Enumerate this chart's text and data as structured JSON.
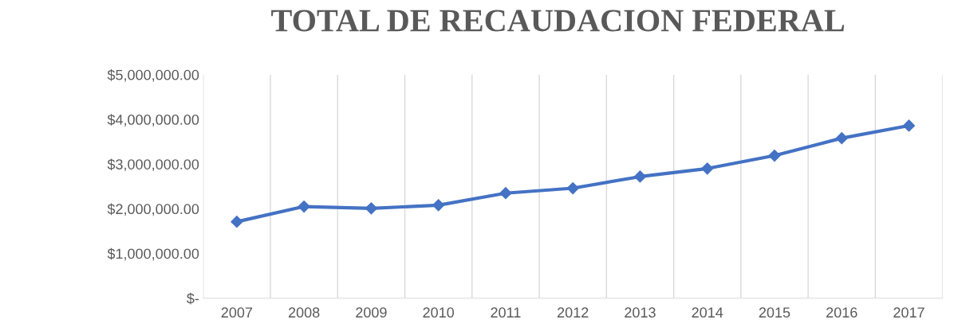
{
  "chart_data": {
    "type": "line",
    "title": "TOTAL DE RECAUDACION FEDERAL",
    "categories": [
      "2007",
      "2008",
      "2009",
      "2010",
      "2011",
      "2012",
      "2013",
      "2014",
      "2015",
      "2016",
      "2017"
    ],
    "series": [
      {
        "color": "#4472c4",
        "values": [
          1710000,
          2050000,
          2010000,
          2080000,
          2350000,
          2460000,
          2720000,
          2900000,
          3190000,
          3580000,
          3860000
        ]
      }
    ],
    "ylim": [
      0,
      5000000
    ],
    "yticks": [
      {
        "value": 0,
        "label": "$-"
      },
      {
        "value": 1000000,
        "label": "$1,000,000.00"
      },
      {
        "value": 2000000,
        "label": "$2,000,000.00"
      },
      {
        "value": 3000000,
        "label": "$3,000,000.00"
      },
      {
        "value": 4000000,
        "label": "$4,000,000.00"
      },
      {
        "value": 5000000,
        "label": "$5,000,000.00"
      }
    ],
    "grid": "x",
    "marker": "diamond",
    "line_style": "solid",
    "legend": false
  }
}
